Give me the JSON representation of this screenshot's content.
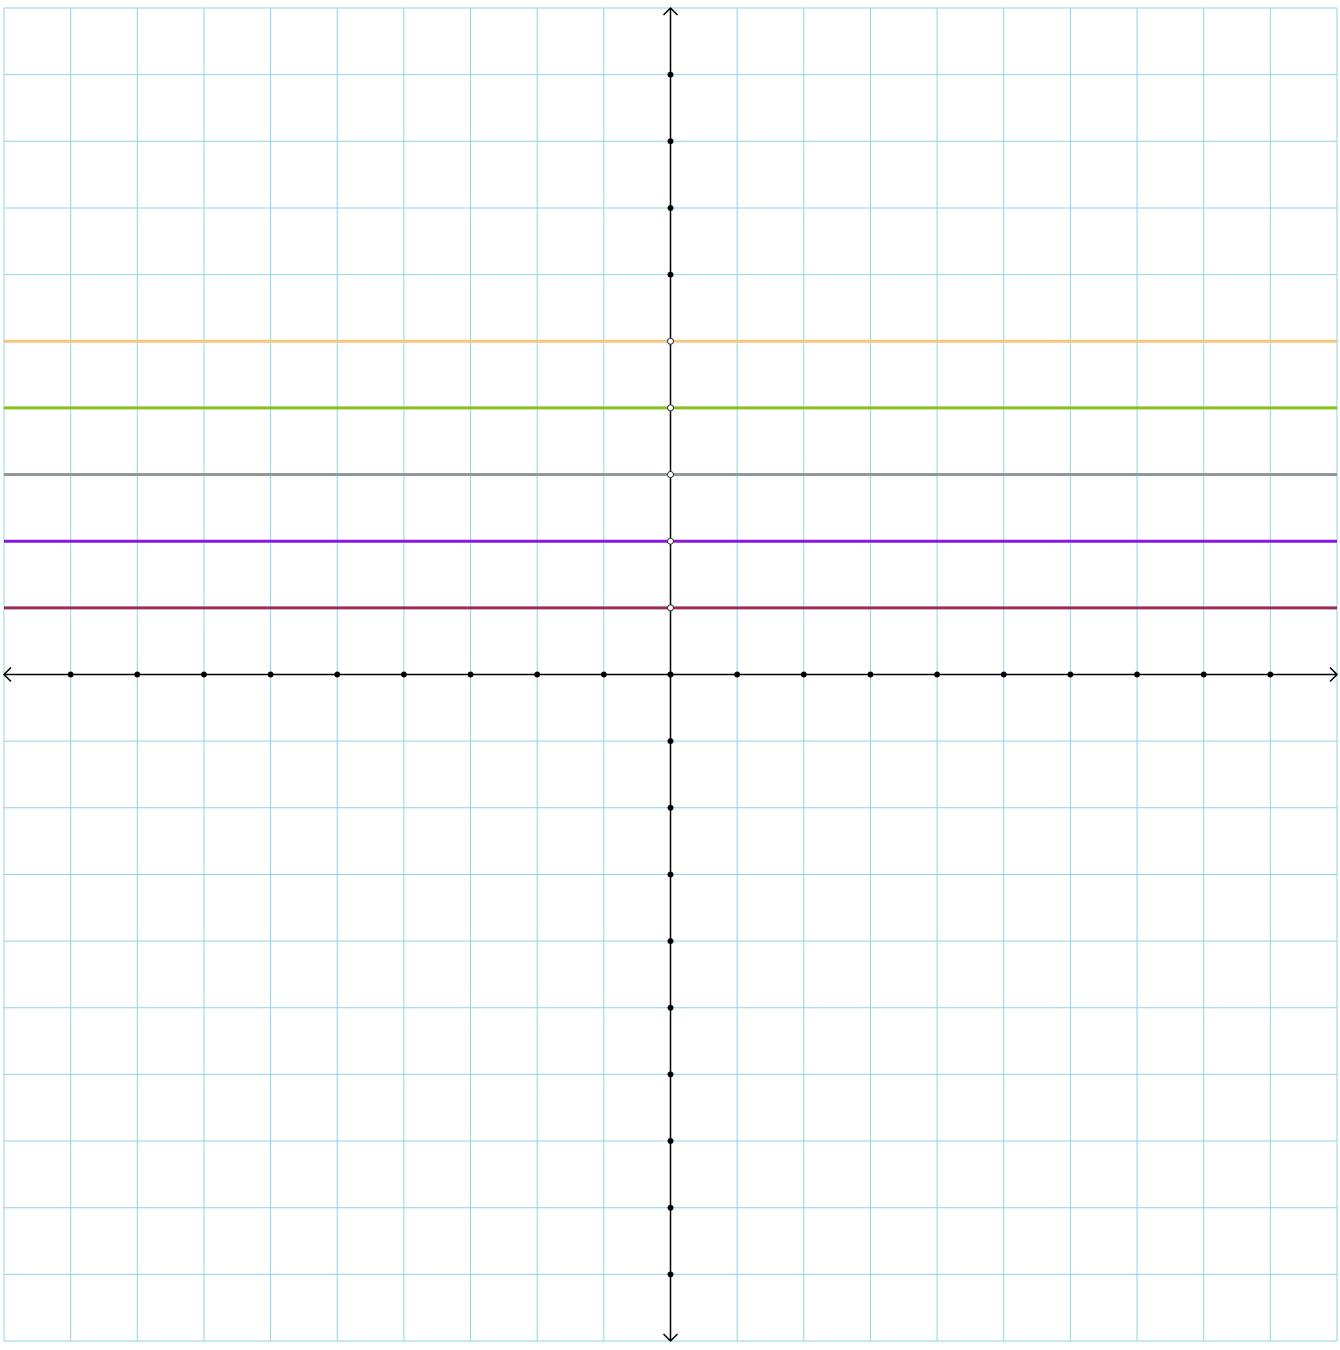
{
  "chart_data": {
    "type": "line",
    "title": "",
    "xlabel": "",
    "ylabel": "",
    "xlim": [
      -10,
      10
    ],
    "ylim": [
      -10,
      10
    ],
    "grid": true,
    "tick_labels_shown": false,
    "axis_tick_step": 1,
    "colors": {
      "grid": "#8fd3e8",
      "axis": "#000000",
      "tick_dot": "#000000"
    },
    "series": [
      {
        "y": 1,
        "x": [
          -10,
          10
        ],
        "values": [
          1,
          1
        ],
        "color": "#9b2d4e"
      },
      {
        "y": 2,
        "x": [
          -10,
          10
        ],
        "values": [
          2,
          2
        ],
        "color": "#8a17e0"
      },
      {
        "y": 3,
        "x": [
          -10,
          10
        ],
        "values": [
          3,
          3
        ],
        "color": "#8e9a99"
      },
      {
        "y": 4,
        "x": [
          -10,
          10
        ],
        "values": [
          4,
          4
        ],
        "color": "#86c01e"
      },
      {
        "y": 5,
        "x": [
          -10,
          10
        ],
        "values": [
          5,
          5
        ],
        "color": "#f5c77e"
      }
    ]
  }
}
